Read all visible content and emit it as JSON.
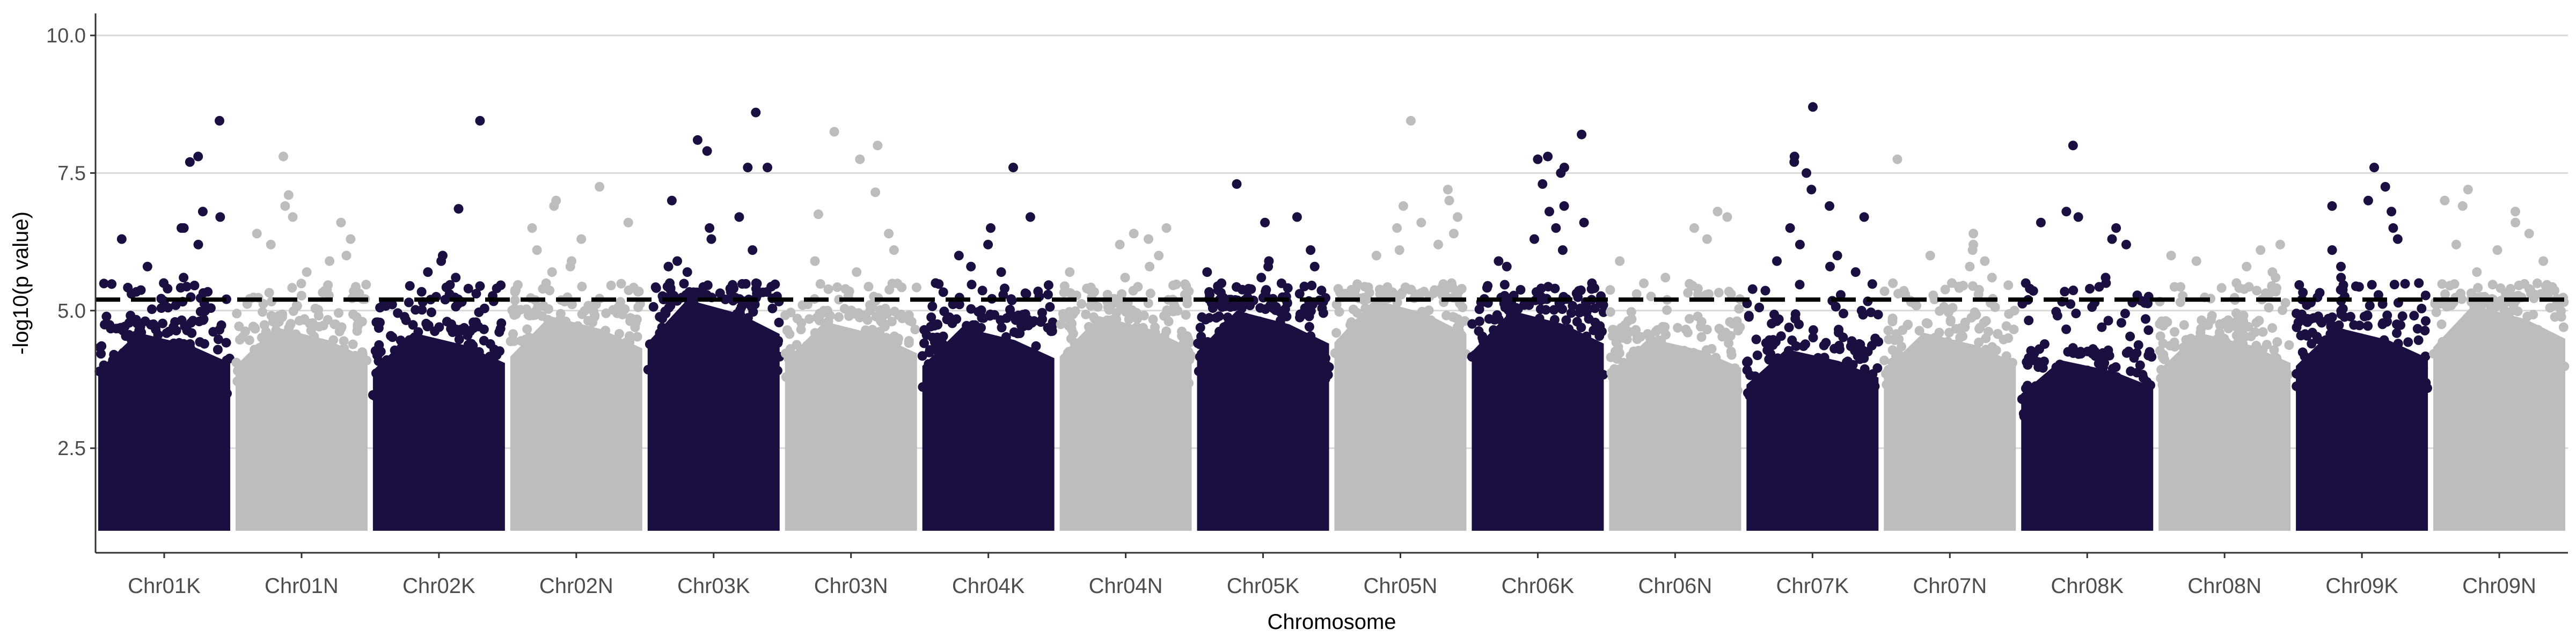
{
  "chart_data": {
    "type": "scatter",
    "subtype": "manhattan",
    "title": "",
    "xlabel": "Chromosome",
    "ylabel": "-log10(p value)",
    "ylim": [
      0.6,
      10.4
    ],
    "y_ticks": [
      2.5,
      5.0,
      7.5,
      10.0
    ],
    "y_tick_labels": [
      "2.5",
      "5.0",
      "7.5",
      "10.0"
    ],
    "grid": "horizontal major lines",
    "legend": "none",
    "threshold": 5.2,
    "threshold_style": "dashed",
    "colors": {
      "dark": "#1b0f41",
      "light": "#bdbdbd",
      "threshold": "#000000",
      "grid": "#d9d9d9"
    },
    "chromosomes": [
      {
        "name": "Chr01K",
        "color": "dark",
        "bulk_max": 4.6,
        "top_points": [
          8.45,
          7.8,
          7.7,
          6.8,
          6.7,
          6.5,
          6.5,
          6.3,
          6.2,
          5.8,
          5.6,
          5.5
        ]
      },
      {
        "name": "Chr01N",
        "color": "light",
        "bulk_max": 4.7,
        "top_points": [
          7.8,
          7.1,
          6.9,
          6.7,
          6.6,
          6.4,
          6.3,
          6.2,
          6.0,
          5.9,
          5.7
        ]
      },
      {
        "name": "Chr02K",
        "color": "dark",
        "bulk_max": 4.6,
        "top_points": [
          8.45,
          6.85,
          6.0,
          5.9,
          5.7,
          5.6,
          5.4,
          5.3,
          5.2
        ]
      },
      {
        "name": "Chr02N",
        "color": "light",
        "bulk_max": 4.9,
        "top_points": [
          7.25,
          7.0,
          6.9,
          6.6,
          6.5,
          6.3,
          6.1,
          5.9,
          5.8,
          5.7
        ]
      },
      {
        "name": "Chr03K",
        "color": "dark",
        "bulk_max": 5.2,
        "top_points": [
          8.6,
          8.1,
          7.9,
          7.6,
          7.6,
          7.0,
          6.7,
          6.5,
          6.3,
          6.1,
          5.9,
          5.8,
          5.7
        ]
      },
      {
        "name": "Chr03N",
        "color": "light",
        "bulk_max": 4.8,
        "top_points": [
          8.25,
          8.0,
          7.75,
          7.15,
          6.75,
          6.4,
          6.1,
          5.9,
          5.7
        ]
      },
      {
        "name": "Chr04K",
        "color": "dark",
        "bulk_max": 4.7,
        "top_points": [
          7.6,
          6.7,
          6.5,
          6.2,
          6.0,
          5.8,
          5.7,
          5.5
        ]
      },
      {
        "name": "Chr04N",
        "color": "light",
        "bulk_max": 4.9,
        "top_points": [
          6.5,
          6.4,
          6.3,
          6.2,
          6.0,
          5.8,
          5.7,
          5.6
        ]
      },
      {
        "name": "Chr05K",
        "color": "dark",
        "bulk_max": 5.0,
        "top_points": [
          7.3,
          6.7,
          6.6,
          6.1,
          5.9,
          5.8,
          5.8,
          5.7,
          5.6
        ]
      },
      {
        "name": "Chr05N",
        "color": "light",
        "bulk_max": 5.2,
        "top_points": [
          8.45,
          7.2,
          7.0,
          6.9,
          6.7,
          6.6,
          6.5,
          6.4,
          6.2,
          6.1,
          6.0
        ]
      },
      {
        "name": "Chr06K",
        "color": "dark",
        "bulk_max": 5.0,
        "top_points": [
          8.2,
          7.8,
          7.75,
          7.6,
          7.5,
          7.3,
          6.9,
          6.8,
          6.6,
          6.5,
          6.3,
          6.1,
          5.9,
          5.8
        ]
      },
      {
        "name": "Chr06N",
        "color": "light",
        "bulk_max": 4.5,
        "top_points": [
          6.8,
          6.7,
          6.5,
          6.3,
          5.9,
          5.6,
          5.4,
          5.3
        ]
      },
      {
        "name": "Chr07K",
        "color": "dark",
        "bulk_max": 4.3,
        "top_points": [
          8.7,
          7.8,
          7.7,
          7.5,
          7.2,
          6.9,
          6.7,
          6.5,
          6.2,
          6.0,
          5.9,
          5.8,
          5.7
        ]
      },
      {
        "name": "Chr07N",
        "color": "light",
        "bulk_max": 4.6,
        "top_points": [
          7.75,
          6.4,
          6.2,
          6.1,
          6.0,
          5.9,
          5.8,
          5.6,
          5.5
        ]
      },
      {
        "name": "Chr08K",
        "color": "dark",
        "bulk_max": 4.1,
        "top_points": [
          8.0,
          6.8,
          6.7,
          6.6,
          6.5,
          6.3,
          6.2,
          5.6,
          5.5,
          5.4
        ]
      },
      {
        "name": "Chr08N",
        "color": "light",
        "bulk_max": 4.6,
        "top_points": [
          6.2,
          6.1,
          6.0,
          5.9,
          5.8,
          5.7,
          5.6,
          5.5
        ]
      },
      {
        "name": "Chr09K",
        "color": "dark",
        "bulk_max": 4.7,
        "top_points": [
          7.6,
          7.25,
          7.0,
          6.9,
          6.8,
          6.5,
          6.3,
          6.1,
          5.8,
          5.6,
          5.5
        ]
      },
      {
        "name": "Chr09N",
        "color": "light",
        "bulk_max": 5.1,
        "top_points": [
          7.2,
          7.0,
          6.9,
          6.8,
          6.6,
          6.4,
          6.2,
          6.1,
          5.9,
          5.7
        ]
      }
    ]
  }
}
